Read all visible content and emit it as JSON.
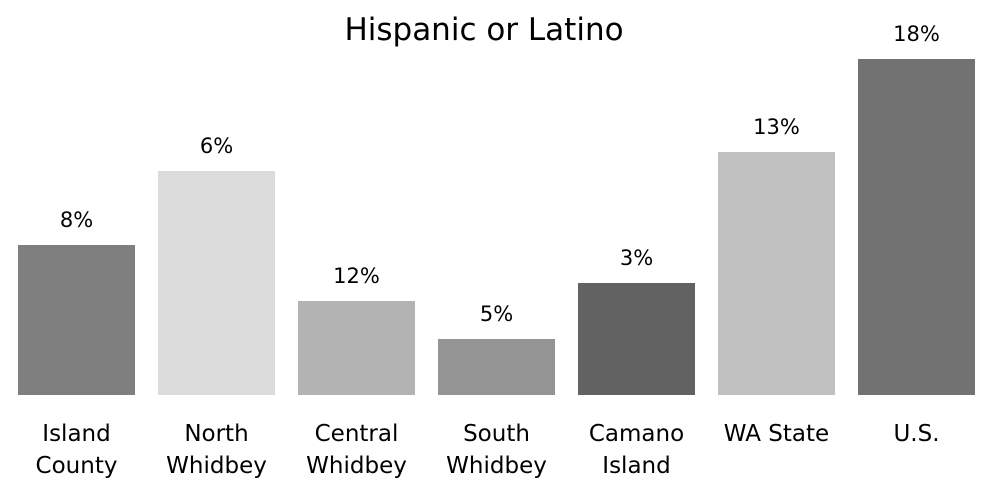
{
  "chart_data": {
    "type": "bar",
    "title": "Hispanic or Latino",
    "categories": [
      [
        "Island",
        "County"
      ],
      [
        "North",
        "Whidbey"
      ],
      [
        "Central",
        "Whidbey"
      ],
      [
        "South",
        "Whidbey"
      ],
      [
        "Camano",
        "Island"
      ],
      [
        "WA State"
      ],
      [
        "U.S."
      ]
    ],
    "values": [
      8,
      6,
      12,
      5,
      3,
      13,
      18
    ],
    "data_labels": [
      "8%",
      "6%",
      "12%",
      "5%",
      "3%",
      "13%",
      "18%"
    ],
    "bar_colors": [
      "#7f7f7f",
      "#dcdcdc",
      "#b3b3b3",
      "#949494",
      "#626262",
      "#c0c0c0",
      "#727272"
    ],
    "legend": "none",
    "grid": false
  }
}
